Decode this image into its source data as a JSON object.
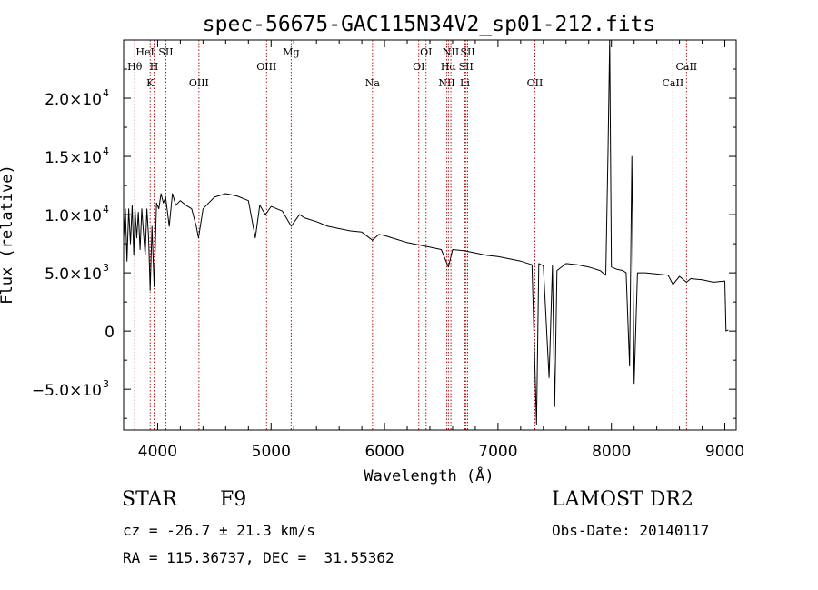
{
  "chart_data": {
    "type": "line",
    "title": "spec-56675-GAC115N34V2_sp01-212.fits",
    "xlabel": "Wavelength (Å)",
    "ylabel": "Flux (relative)",
    "xlim": [
      3700,
      9100
    ],
    "ylim": [
      -8500,
      25000
    ],
    "xticks": [
      4000,
      5000,
      6000,
      7000,
      8000,
      9000
    ],
    "xtick_labels": [
      "4000",
      "5000",
      "6000",
      "7000",
      "8000",
      "9000"
    ],
    "yticks": [
      -5000,
      0,
      5000,
      10000,
      15000,
      20000
    ],
    "ytick_labels": [
      {
        "mant": "−5.0×10",
        "exp": "3"
      },
      {
        "mant": "0",
        "exp": ""
      },
      {
        "mant": "5.0×10",
        "exp": "3"
      },
      {
        "mant": "1.0×10",
        "exp": "4"
      },
      {
        "mant": "1.5×10",
        "exp": "4"
      },
      {
        "mant": "2.0×10",
        "exp": "4"
      }
    ],
    "grid": false,
    "line_color": "#000000",
    "marker_color": "#aa0000",
    "lines": [
      {
        "label": "Hθ",
        "wave": 3798,
        "row": 2
      },
      {
        "label": "HeI",
        "wave": 3889,
        "row": 1
      },
      {
        "label": "K",
        "wave": 3934,
        "row": 3
      },
      {
        "label": "H",
        "wave": 3969,
        "row": 2
      },
      {
        "label": "SII",
        "wave": 4072,
        "row": 1
      },
      {
        "label": "OIII",
        "wave": 4364,
        "row": 3
      },
      {
        "label": "OIII",
        "wave": 4960,
        "row": 2
      },
      {
        "label": "Mg",
        "wave": 5177,
        "row": 1
      },
      {
        "label": "Na",
        "wave": 5894,
        "row": 3
      },
      {
        "label": "OI",
        "wave": 6302,
        "row": 2
      },
      {
        "label": "OI",
        "wave": 6366,
        "row": 1
      },
      {
        "label": "NII",
        "wave": 6549,
        "row": 3
      },
      {
        "label": "Hα",
        "wave": 6563,
        "row": 2
      },
      {
        "label": "NII",
        "wave": 6585,
        "row": 1
      },
      {
        "label": "Li",
        "wave": 6708,
        "row": 3
      },
      {
        "label": "SII",
        "wave": 6718,
        "row": 2
      },
      {
        "label": "SII",
        "wave": 6733,
        "row": 1
      },
      {
        "label": "OII",
        "wave": 7325,
        "row": 3
      },
      {
        "label": "CaII",
        "wave": 8542,
        "row": 3
      },
      {
        "label": "CaII",
        "wave": 8662,
        "row": 2
      }
    ],
    "series": [
      {
        "x": [
          3700,
          3715,
          3730,
          3745,
          3760,
          3775,
          3790,
          3800,
          3815,
          3830,
          3845,
          3860,
          3875,
          3890,
          3905,
          3920,
          3934,
          3950,
          3969,
          3990,
          4010,
          4030,
          4050,
          4070,
          4102,
          4130,
          4160,
          4200,
          4250,
          4300,
          4340,
          4360,
          4400,
          4450,
          4500,
          4600,
          4700,
          4800,
          4861,
          4900,
          4950,
          5000,
          5100,
          5177,
          5250,
          5300,
          5400,
          5500,
          5600,
          5700,
          5800,
          5894,
          5950,
          6000,
          6100,
          6200,
          6300,
          6400,
          6500,
          6563,
          6600,
          6700,
          6800,
          6900,
          7000,
          7100,
          7200,
          7300,
          7340,
          7360,
          7400,
          7450,
          7480,
          7500,
          7520,
          7600,
          7700,
          7800,
          7900,
          7950,
          7970,
          7985,
          8000,
          8050,
          8100,
          8130,
          8160,
          8180,
          8200,
          8230,
          8300,
          8400,
          8500,
          8542,
          8600,
          8662,
          8700,
          8800,
          8900,
          9000,
          9010,
          9030
        ],
        "y": [
          8000,
          10500,
          6000,
          10500,
          7500,
          10800,
          6500,
          10500,
          8000,
          10200,
          7000,
          10500,
          8500,
          6500,
          10500,
          8000,
          3500,
          9000,
          3800,
          11000,
          10500,
          11800,
          11000,
          11500,
          9000,
          11800,
          10800,
          11200,
          10800,
          10500,
          9000,
          8000,
          10500,
          11000,
          11500,
          11800,
          11600,
          11200,
          8000,
          10800,
          10000,
          10700,
          10300,
          9000,
          10000,
          9700,
          9400,
          9000,
          8800,
          8600,
          8500,
          7800,
          8300,
          8200,
          7900,
          7600,
          7400,
          7200,
          7000,
          5500,
          7000,
          6900,
          6700,
          6500,
          6400,
          6200,
          6000,
          5700,
          -8000,
          5800,
          5600,
          -4000,
          5600,
          -6500,
          5200,
          5800,
          5700,
          5500,
          5200,
          4800,
          15500,
          25000,
          5500,
          5300,
          5200,
          5000,
          -3000,
          15000,
          -4500,
          5000,
          5000,
          4900,
          4800,
          4000,
          4700,
          4200,
          4500,
          4400,
          4200,
          4300,
          0,
          100
        ]
      }
    ]
  },
  "info": {
    "object_type": "STAR",
    "subclass": "F9",
    "survey": "LAMOST DR2",
    "cz": "cz = -26.7 ± 21.3 km/s",
    "obs_date": "Obs-Date: 20140117",
    "coords": "RA = 115.36737, DEC =  31.55362"
  }
}
